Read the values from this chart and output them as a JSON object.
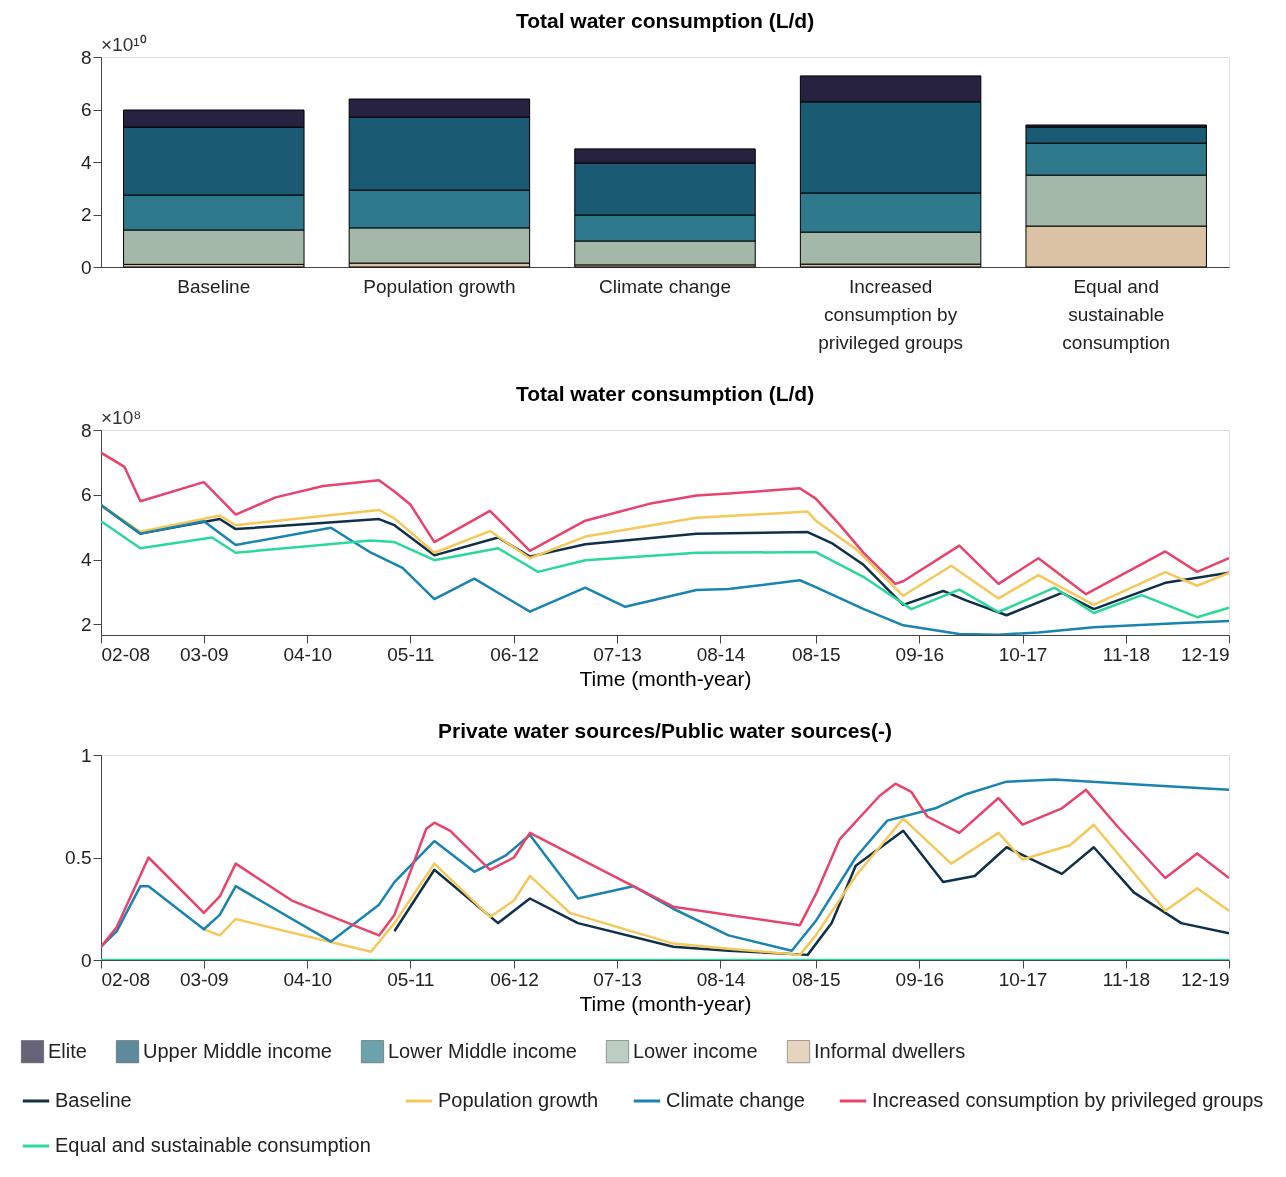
{
  "chart_data": [
    {
      "type": "bar",
      "title": "Total water consumption (L/d)",
      "stacked": true,
      "legend": "bottom",
      "categories": [
        "Baseline",
        "Population growth",
        "Climate change",
        "Increased consumption by privileged groups",
        "Equal and sustainable consumption"
      ],
      "series": [
        {
          "name": "Informal dwellers",
          "color": "#dcc2a4",
          "values": [
            0.1,
            0.15,
            0.08,
            0.11,
            1.56
          ]
        },
        {
          "name": "Lower income",
          "color": "#a3b8a8",
          "values": [
            1.31,
            1.34,
            0.91,
            1.22,
            1.94
          ]
        },
        {
          "name": "Lower Middle income",
          "color": "#2e7a8c",
          "values": [
            1.33,
            1.44,
            0.99,
            1.49,
            1.22
          ]
        },
        {
          "name": "Upper Middle income",
          "color": "#1b5a73",
          "values": [
            2.59,
            2.78,
            1.98,
            3.47,
            0.61
          ]
        },
        {
          "name": "Elite",
          "color": "#27223f",
          "values": [
            0.65,
            0.69,
            0.54,
            0.99,
            0.08
          ]
        }
      ],
      "ylim": [
        0,
        8
      ],
      "yticks": [
        0,
        2,
        4,
        6,
        8
      ],
      "annotations": [
        "×10¹⁰"
      ]
    },
    {
      "type": "line",
      "title": "Total water consumption (L/d)",
      "xlabel": "Time (month-year)",
      "legend": "bottom",
      "xlim": [
        "2008-02",
        "2019-12"
      ],
      "xticks": [
        {
          "value": "2008-02",
          "label": "02-08"
        },
        {
          "value": "2009-03",
          "label": "03-09"
        },
        {
          "value": "2010-04",
          "label": "04-10"
        },
        {
          "value": "2011-05",
          "label": "05-11"
        },
        {
          "value": "2012-06",
          "label": "06-12"
        },
        {
          "value": "2013-07",
          "label": "07-13"
        },
        {
          "value": "2014-08",
          "label": "08-14"
        },
        {
          "value": "2015-08",
          "label": "08-15"
        },
        {
          "value": "2016-09",
          "label": "09-16"
        },
        {
          "value": "2017-10",
          "label": "10-17"
        },
        {
          "value": "2018-11",
          "label": "11-18"
        },
        {
          "value": "2019-12",
          "label": "12-19"
        }
      ],
      "ylim": [
        1.67,
        8
      ],
      "yticks": [
        2,
        4,
        6,
        8
      ],
      "annotations": [
        "×10⁸"
      ],
      "series": [
        {
          "name": "Baseline",
          "color": "#10304a",
          "x": [
            "2008-02",
            "2008-07",
            "2009-05",
            "2009-07",
            "2011-01",
            "2011-03",
            "2011-08",
            "2012-04",
            "2012-08",
            "2013-03",
            "2014-05",
            "2015-07",
            "2015-10",
            "2016-02",
            "2016-07",
            "2016-12",
            "2017-03",
            "2017-08",
            "2018-03",
            "2018-07",
            "2019-04",
            "2019-12"
          ],
          "values": [
            5.68,
            4.8,
            5.25,
            4.94,
            5.25,
            5.06,
            4.13,
            4.68,
            4.09,
            4.47,
            4.8,
            4.85,
            4.51,
            3.83,
            2.6,
            3.03,
            2.73,
            2.28,
            2.97,
            2.47,
            3.28,
            3.59
          ]
        },
        {
          "name": "Population growth",
          "color": "#f5c85a",
          "x": [
            "2008-02",
            "2008-07",
            "2009-05",
            "2009-07",
            "2011-01",
            "2011-03",
            "2011-08",
            "2012-03",
            "2012-08",
            "2013-03",
            "2014-05",
            "2015-07",
            "2015-08",
            "2016-01",
            "2016-07",
            "2017-01",
            "2017-07",
            "2017-12",
            "2018-07",
            "2019-04",
            "2019-08",
            "2019-12"
          ],
          "values": [
            5.68,
            4.86,
            5.36,
            5.06,
            5.53,
            5.27,
            4.21,
            4.88,
            4.04,
            4.71,
            5.29,
            5.48,
            5.2,
            4.33,
            2.88,
            3.81,
            2.8,
            3.52,
            2.6,
            3.61,
            3.19,
            3.59
          ]
        },
        {
          "name": "Climate change",
          "color": "#1a84b0",
          "x": [
            "2008-02",
            "2008-07",
            "2009-03",
            "2009-07",
            "2010-07",
            "2010-12",
            "2011-04",
            "2011-08",
            "2012-01",
            "2012-08",
            "2013-03",
            "2013-08",
            "2014-05",
            "2014-09",
            "2015-06",
            "2015-08",
            "2016-02",
            "2016-07",
            "2017-02",
            "2017-07",
            "2017-12",
            "2018-07",
            "2019-06",
            "2019-12"
          ],
          "values": [
            5.68,
            4.8,
            5.18,
            4.45,
            4.98,
            4.21,
            3.74,
            2.78,
            3.41,
            2.39,
            3.13,
            2.54,
            3.06,
            3.09,
            3.36,
            3.15,
            2.47,
            1.97,
            1.7,
            1.68,
            1.75,
            1.91,
            2.04,
            2.1
          ]
        },
        {
          "name": "Increased consumption by privileged groups",
          "color": "#e8436b",
          "x": [
            "2008-02",
            "2008-05",
            "2008-07",
            "2009-03",
            "2009-07",
            "2009-12",
            "2010-06",
            "2011-01",
            "2011-03",
            "2011-05",
            "2011-08",
            "2012-03",
            "2012-08",
            "2013-03",
            "2013-11",
            "2014-05",
            "2014-09",
            "2015-06",
            "2015-08",
            "2015-11",
            "2016-02",
            "2016-06",
            "2016-07",
            "2017-02",
            "2017-07",
            "2017-12",
            "2018-06",
            "2019-04",
            "2019-08",
            "2019-12"
          ],
          "values": [
            7.3,
            6.86,
            5.8,
            6.39,
            5.39,
            5.92,
            6.27,
            6.45,
            6.1,
            5.7,
            4.54,
            5.5,
            4.27,
            5.2,
            5.72,
            5.98,
            6.04,
            6.2,
            5.88,
            5.07,
            4.2,
            3.25,
            3.33,
            4.43,
            3.25,
            4.04,
            2.93,
            4.25,
            3.62,
            4.04
          ]
        },
        {
          "name": "Equal and sustainable consumption",
          "color": "#2bd89c",
          "x": [
            "2008-02",
            "2008-07",
            "2009-04",
            "2009-07",
            "2010-12",
            "2011-03",
            "2011-08",
            "2012-04",
            "2012-09",
            "2013-03",
            "2014-05",
            "2015-08",
            "2016-02",
            "2016-08",
            "2017-02",
            "2017-07",
            "2018-02",
            "2018-07",
            "2019-01",
            "2019-08",
            "2019-12"
          ],
          "values": [
            5.18,
            4.35,
            4.68,
            4.21,
            4.59,
            4.54,
            3.98,
            4.35,
            3.62,
            3.98,
            4.21,
            4.23,
            3.46,
            2.47,
            3.07,
            2.38,
            3.13,
            2.35,
            2.9,
            2.22,
            2.51
          ]
        }
      ]
    },
    {
      "type": "line",
      "title": "Private water sources/Public water sources(-)",
      "xlabel": "Time (month-year)",
      "legend": "bottom",
      "xlim": [
        "2008-02",
        "2019-12"
      ],
      "xticks": [
        {
          "value": "2008-02",
          "label": "02-08"
        },
        {
          "value": "2009-03",
          "label": "03-09"
        },
        {
          "value": "2010-04",
          "label": "04-10"
        },
        {
          "value": "2011-05",
          "label": "05-11"
        },
        {
          "value": "2012-06",
          "label": "06-12"
        },
        {
          "value": "2013-07",
          "label": "07-13"
        },
        {
          "value": "2014-08",
          "label": "08-14"
        },
        {
          "value": "2015-08",
          "label": "08-15"
        },
        {
          "value": "2016-09",
          "label": "09-16"
        },
        {
          "value": "2017-10",
          "label": "10-17"
        },
        {
          "value": "2018-11",
          "label": "11-18"
        },
        {
          "value": "2019-12",
          "label": "12-19"
        }
      ],
      "ylim": [
        0,
        1
      ],
      "yticks": [
        0,
        0.5,
        1
      ],
      "series": [
        {
          "name": "Baseline",
          "color": "#10304a",
          "x": [
            "2011-03",
            "2011-08",
            "2012-04",
            "2012-08",
            "2013-02",
            "2014-02",
            "2014-09",
            "2015-07",
            "2015-10",
            "2016-01",
            "2016-07",
            "2016-12",
            "2017-04",
            "2017-08",
            "2018-03",
            "2018-07",
            "2018-12",
            "2019-06",
            "2019-12"
          ],
          "values": [
            0.14,
            0.44,
            0.18,
            0.3,
            0.18,
            0.065,
            0.045,
            0.025,
            0.18,
            0.46,
            0.63,
            0.38,
            0.41,
            0.55,
            0.42,
            0.55,
            0.33,
            0.18,
            0.13
          ]
        },
        {
          "name": "Population growth",
          "color": "#f5c85a",
          "x": [
            "2009-03",
            "2009-05",
            "2009-07",
            "2010-12",
            "2011-03",
            "2011-08",
            "2012-03",
            "2012-06",
            "2012-08",
            "2013-01",
            "2014-02",
            "2014-09",
            "2015-06",
            "2015-08",
            "2016-01",
            "2016-07",
            "2017-01",
            "2017-07",
            "2017-10",
            "2018-04",
            "2018-07",
            "2019-04",
            "2019-08",
            "2019-12"
          ],
          "values": [
            0.15,
            0.12,
            0.2,
            0.04,
            0.18,
            0.47,
            0.21,
            0.29,
            0.41,
            0.23,
            0.08,
            0.055,
            0.025,
            0.12,
            0.41,
            0.69,
            0.47,
            0.62,
            0.49,
            0.56,
            0.66,
            0.24,
            0.35,
            0.24
          ]
        },
        {
          "name": "Climate change",
          "color": "#1a84b0",
          "x": [
            "2008-02",
            "2008-04",
            "2008-07",
            "2008-08",
            "2009-03",
            "2009-05",
            "2009-07",
            "2010-07",
            "2011-01",
            "2011-03",
            "2011-08",
            "2012-01",
            "2012-05",
            "2012-08",
            "2013-02",
            "2013-09",
            "2014-02",
            "2014-09",
            "2015-05",
            "2015-08",
            "2016-01",
            "2016-05",
            "2016-11",
            "2017-03",
            "2017-08",
            "2018-02",
            "2019-01",
            "2019-12"
          ],
          "values": [
            0.065,
            0.14,
            0.36,
            0.36,
            0.15,
            0.22,
            0.36,
            0.09,
            0.27,
            0.38,
            0.58,
            0.43,
            0.51,
            0.61,
            0.3,
            0.36,
            0.25,
            0.12,
            0.045,
            0.19,
            0.5,
            0.68,
            0.74,
            0.81,
            0.87,
            0.88,
            0.855,
            0.83
          ]
        },
        {
          "name": "Increased consumption by privileged groups",
          "color": "#e8436b",
          "x": [
            "2008-02",
            "2008-04",
            "2008-08",
            "2009-03",
            "2009-05",
            "2009-07",
            "2010-02",
            "2011-01",
            "2011-03",
            "2011-07",
            "2011-08",
            "2011-10",
            "2012-03",
            "2012-06",
            "2012-08",
            "2013-06",
            "2014-02",
            "2014-09",
            "2015-06",
            "2015-08",
            "2015-11",
            "2016-04",
            "2016-06",
            "2016-08",
            "2016-10",
            "2017-02",
            "2017-07",
            "2017-10",
            "2018-03",
            "2018-06",
            "2018-10",
            "2019-04",
            "2019-08",
            "2019-12"
          ],
          "values": [
            0.065,
            0.16,
            0.5,
            0.23,
            0.31,
            0.47,
            0.29,
            0.12,
            0.22,
            0.64,
            0.67,
            0.63,
            0.44,
            0.5,
            0.62,
            0.42,
            0.26,
            0.22,
            0.17,
            0.32,
            0.59,
            0.8,
            0.86,
            0.82,
            0.7,
            0.62,
            0.79,
            0.66,
            0.74,
            0.83,
            0.65,
            0.4,
            0.52,
            0.4
          ]
        },
        {
          "name": "Equal and sustainable consumption",
          "color": "#2bd89c",
          "x": [
            "2008-02",
            "2019-12"
          ],
          "values": [
            0,
            0
          ]
        }
      ]
    }
  ]
}
